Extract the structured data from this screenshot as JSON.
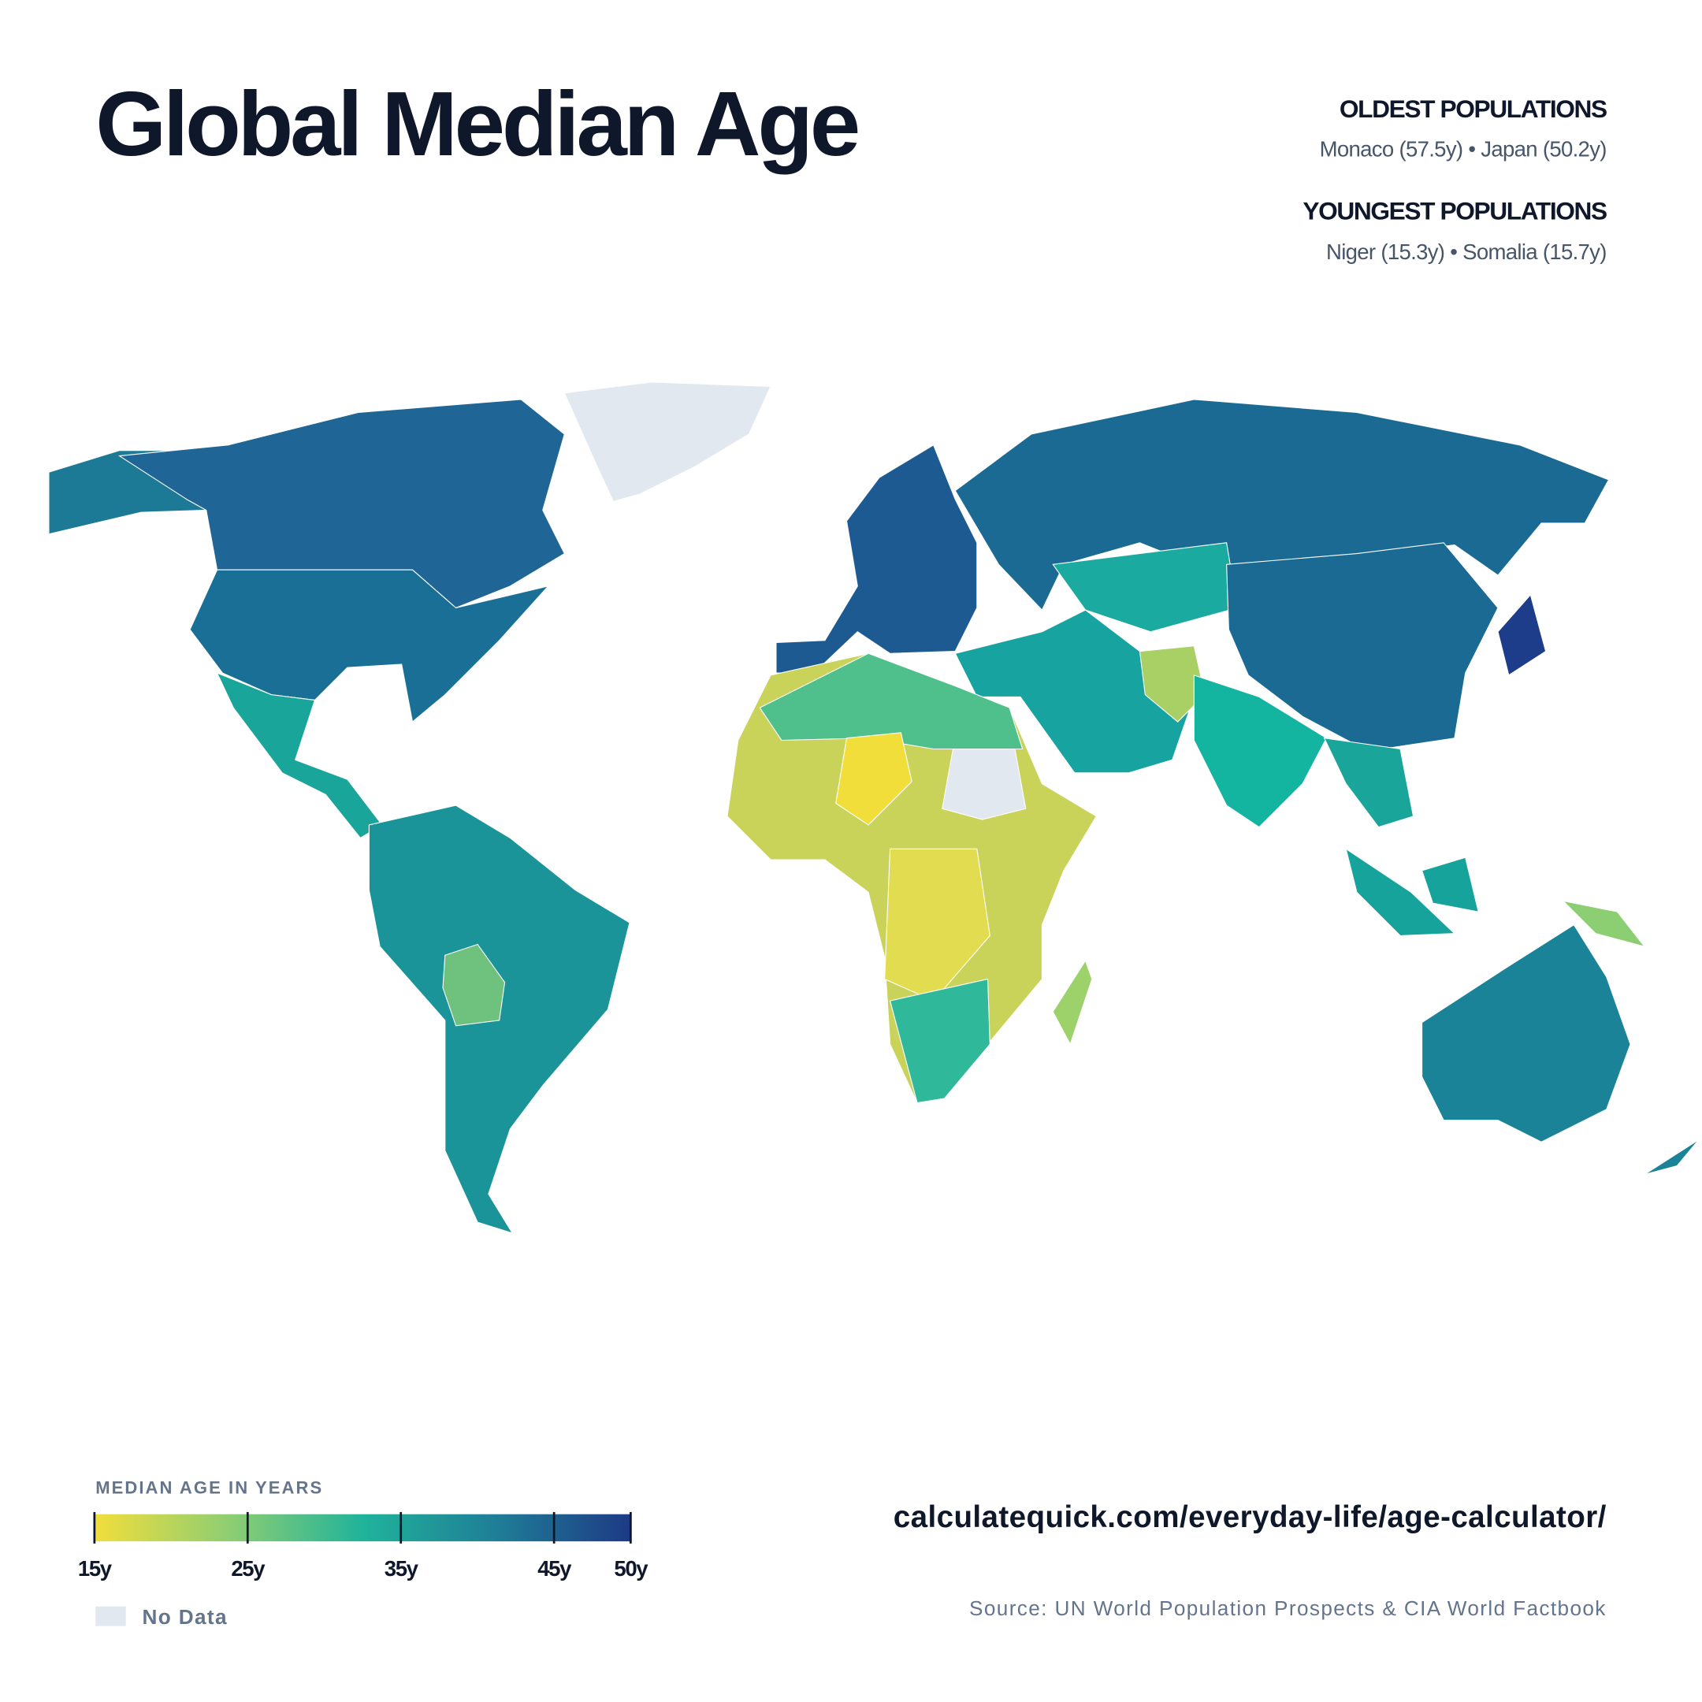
{
  "header": {
    "title": "Global Median Age"
  },
  "highlights": [
    {
      "label": "OLDEST POPULATIONS",
      "text": "Monaco (57.5y) • Japan (50.2y)"
    },
    {
      "label": "YOUNGEST POPULATIONS",
      "text": "Niger (15.3y) • Somalia (15.7y)"
    }
  ],
  "legend": {
    "title": "MEDIAN AGE IN YEARS",
    "range": [
      15,
      50
    ],
    "ticks": [
      {
        "value": 15,
        "label": "15y"
      },
      {
        "value": 25,
        "label": "25y"
      },
      {
        "value": 35,
        "label": "35y"
      },
      {
        "value": 45,
        "label": "45y"
      },
      {
        "value": 50,
        "label": "50y"
      }
    ],
    "colors": [
      "#f2de3b",
      "#8fce72",
      "#20b39a",
      "#1f7e97",
      "#1d3a85"
    ],
    "no_data_label": "No Data",
    "no_data_color": "#e2e8f0"
  },
  "footer": {
    "url": "calculatequick.com/everyday-life/age-calculator/",
    "source": "Source: UN World Population Prospects & CIA World Factbook"
  }
}
